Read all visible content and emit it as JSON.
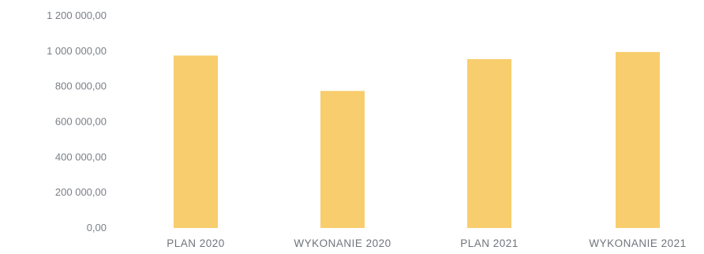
{
  "chart_data": {
    "type": "bar",
    "categories": [
      "PLAN 2020",
      "WYKONANIE 2020",
      "PLAN 2021",
      "WYKONANIE 2021"
    ],
    "values": [
      975000,
      775000,
      955000,
      995000
    ],
    "ylim": [
      0,
      1200000
    ],
    "yticks": [
      0,
      200000,
      400000,
      600000,
      800000,
      1000000,
      1200000
    ],
    "ytick_labels": [
      "0,00",
      "200 000,00",
      "400 000,00",
      "600 000,00",
      "800 000,00",
      "1 000 000,00",
      "1 200 000,00"
    ],
    "bar_color": "#f8cd6d",
    "gridlines": false,
    "legend": "none"
  }
}
